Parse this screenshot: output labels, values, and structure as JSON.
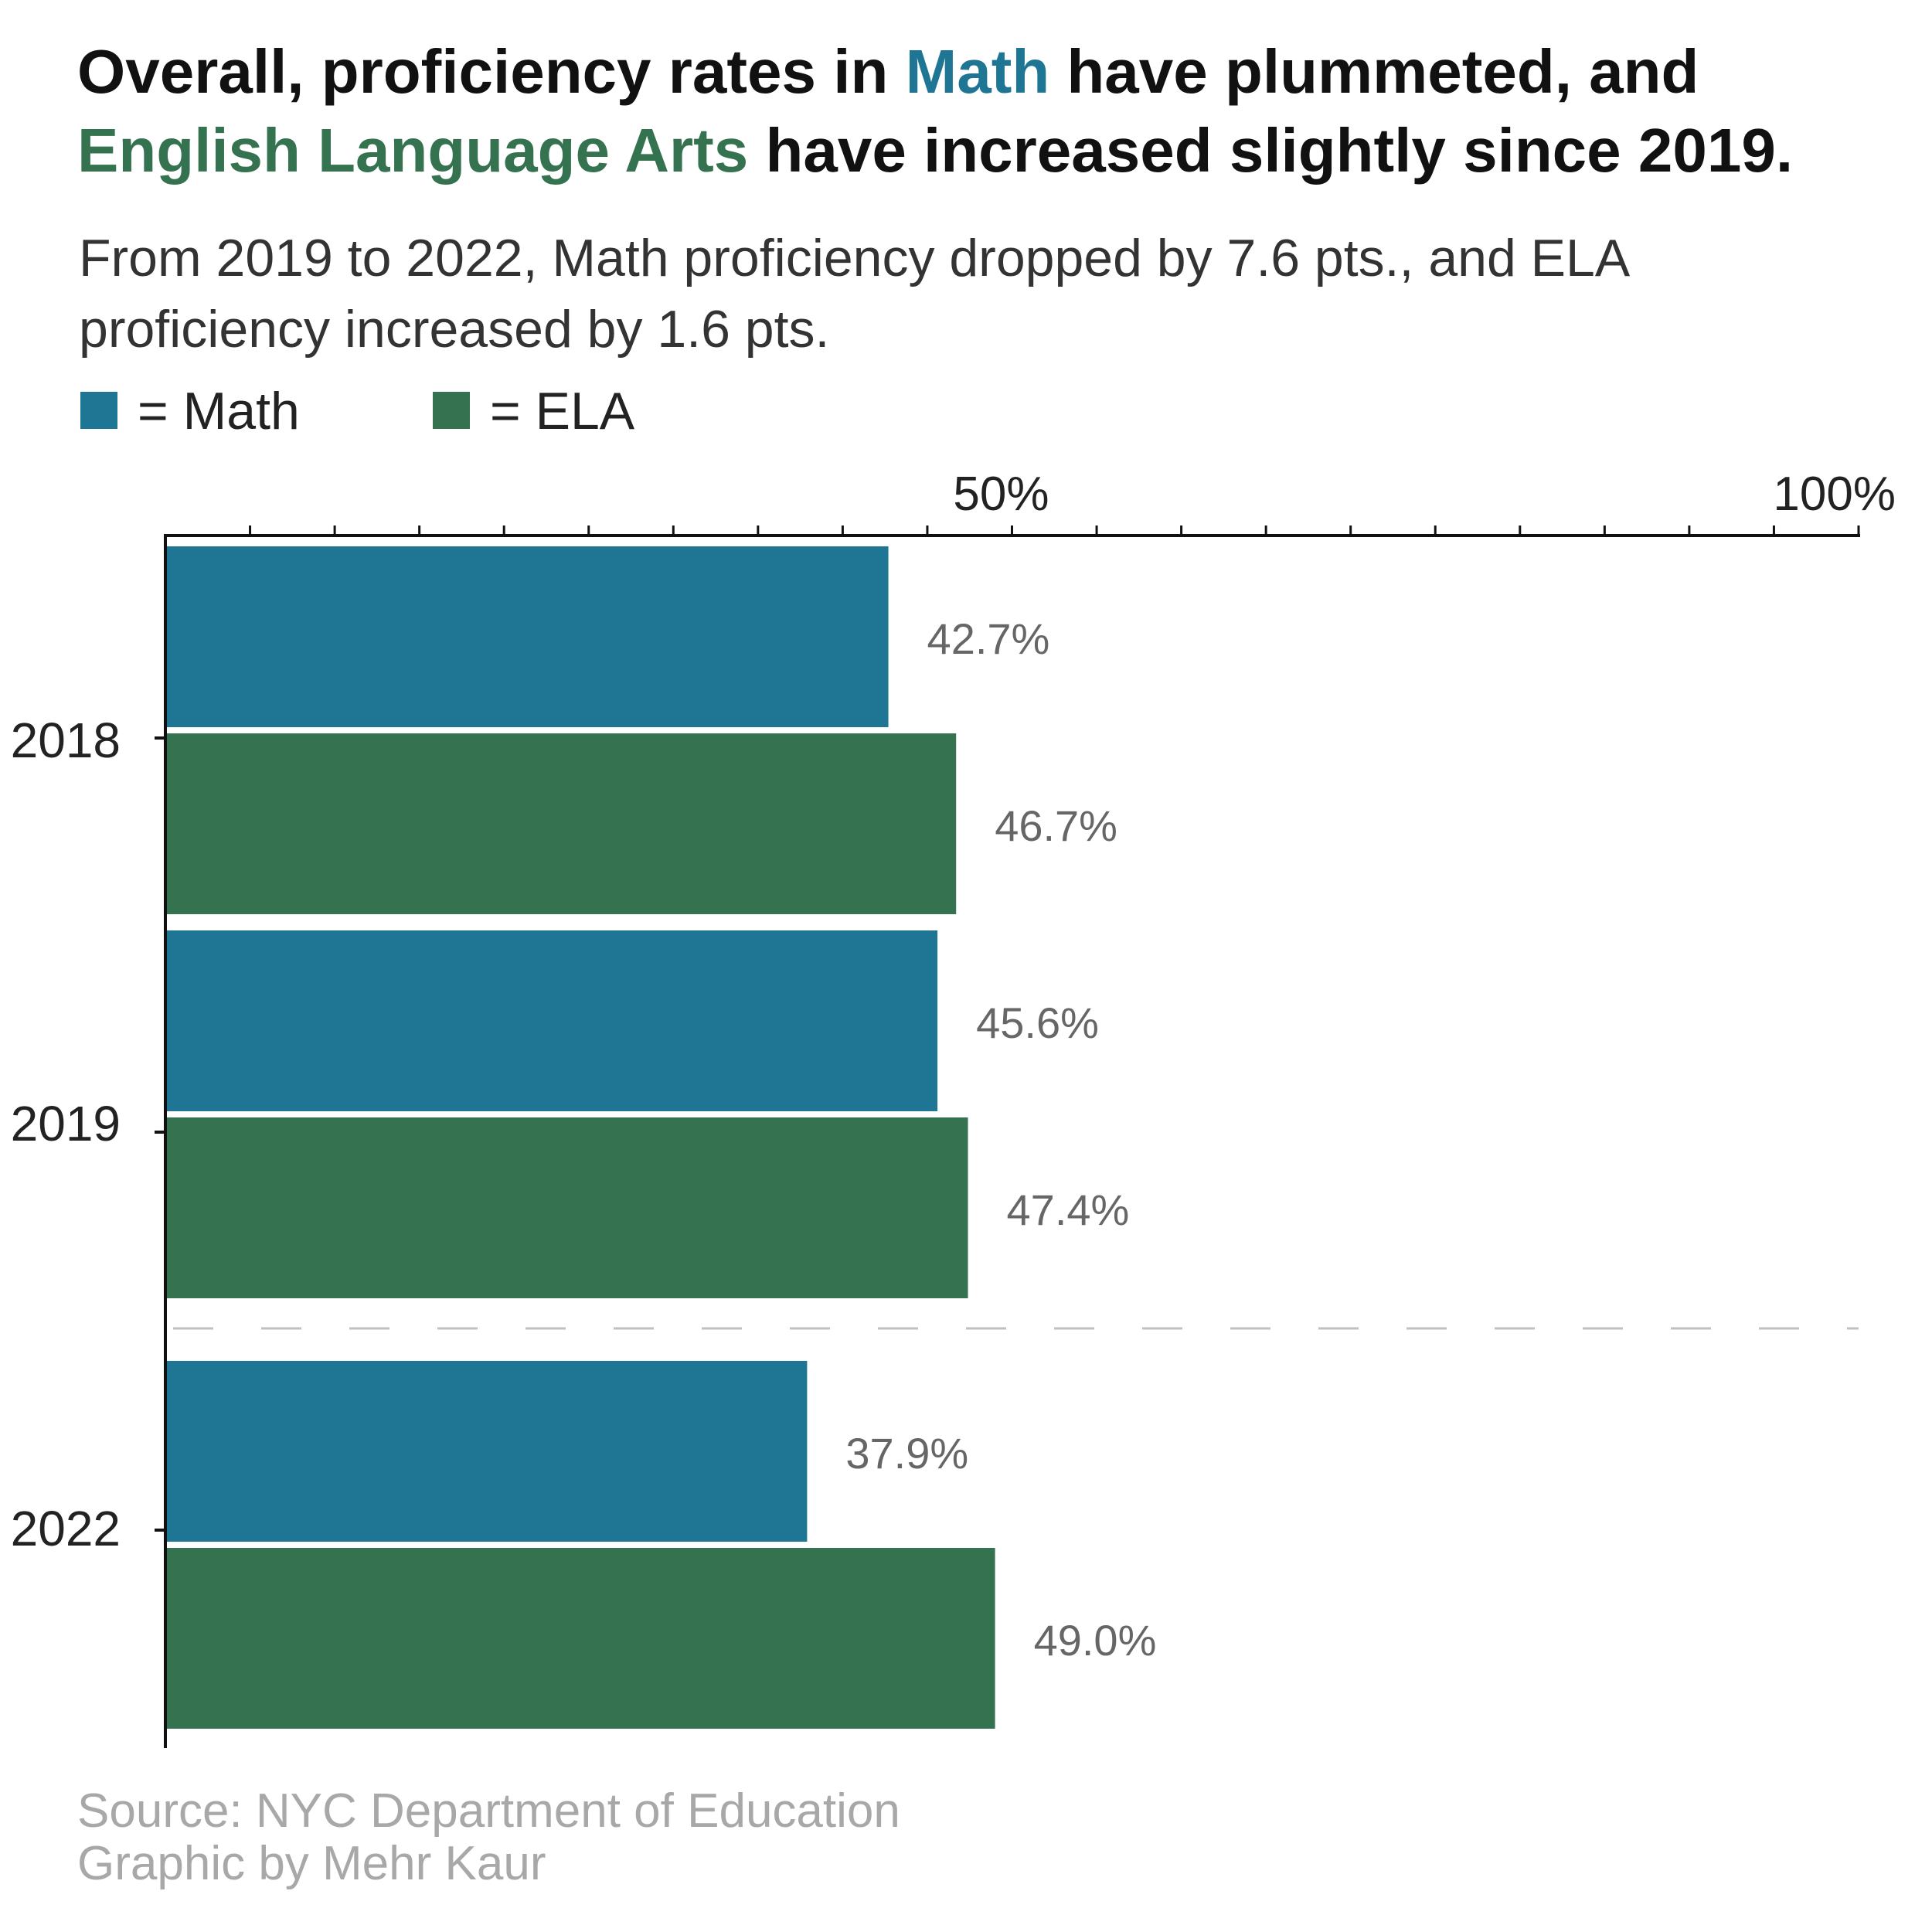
{
  "title": {
    "part1": "Overall, proficiency rates in ",
    "math_word": "Math",
    "part2": " have plummeted, and ",
    "ela_words": "English Language Arts",
    "part3": " have increased slightly since 2019."
  },
  "subtitle": "From 2019 to 2022, Math proficiency dropped by 7.6 pts., and ELA proficiency increased by 1.6 pts.",
  "legend": [
    {
      "label": "= Math",
      "color": "#1f7694",
      "series": "Math"
    },
    {
      "label": "= ELA",
      "color": "#347250",
      "series": "ELA"
    }
  ],
  "footer": {
    "source": "Source: NYC Department of Education",
    "credit": "Graphic by Mehr Kaur"
  },
  "colors": {
    "math": "#1f7694",
    "ela": "#347250",
    "axis": "#111111",
    "value_label": "#666666",
    "separator": "#c0c0c0"
  },
  "chart_data": {
    "type": "bar",
    "orientation": "horizontal",
    "categories": [
      "2018",
      "2019",
      "2022"
    ],
    "series": [
      {
        "name": "Math",
        "values": [
          42.7,
          45.6,
          37.9
        ],
        "labels": [
          "42.7%",
          "45.6%",
          "37.9%"
        ]
      },
      {
        "name": "ELA",
        "values": [
          46.7,
          47.4,
          49.0
        ],
        "labels": [
          "46.7%",
          "47.4%",
          "49.0%"
        ]
      }
    ],
    "x_ticks": [
      {
        "value": 50,
        "label": "50%"
      },
      {
        "value": 100,
        "label": "100%"
      }
    ],
    "x_minor_tick_step": 5,
    "xlim": [
      0,
      100
    ],
    "x_axis_position": "top",
    "separator_between": [
      "2019",
      "2022"
    ],
    "grid": false
  }
}
